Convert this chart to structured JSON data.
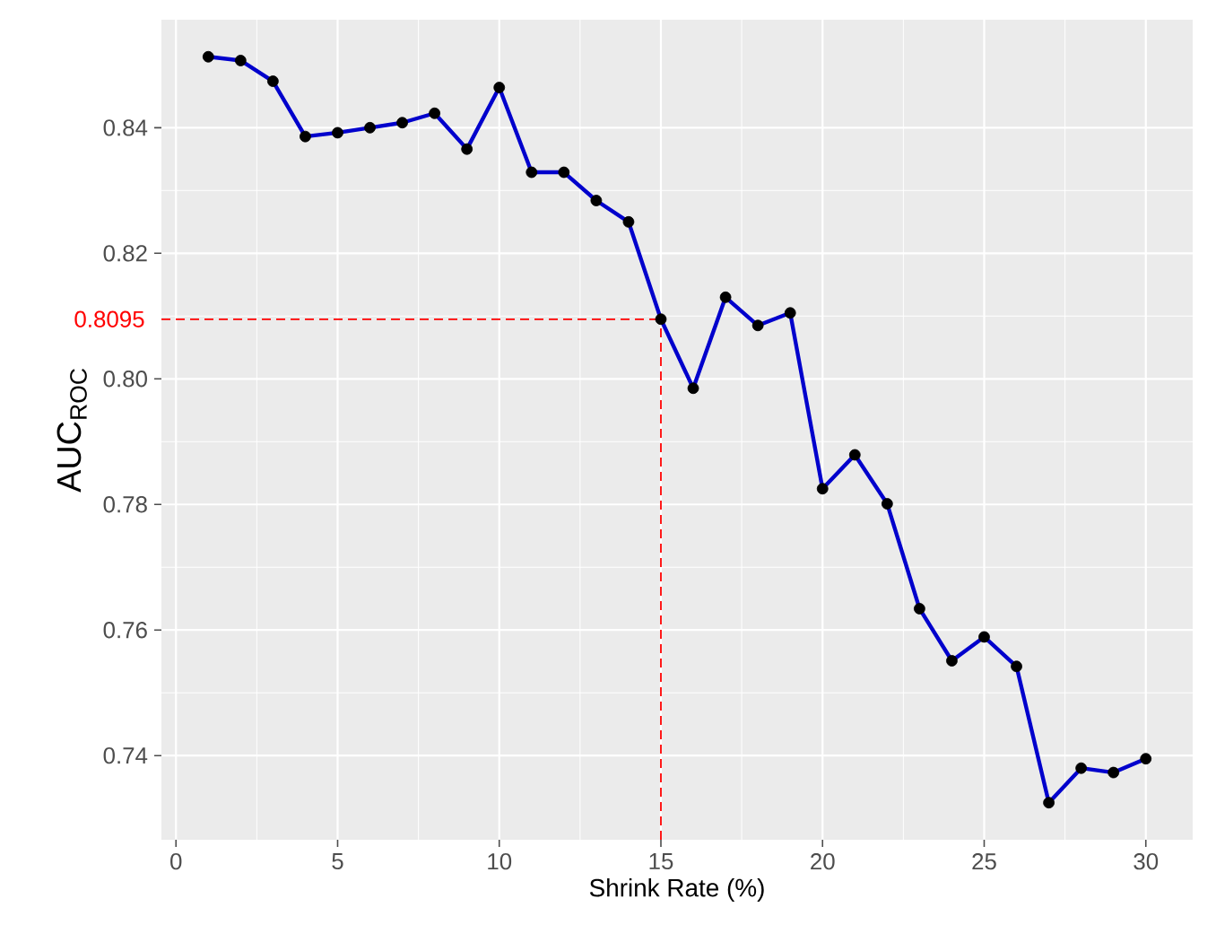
{
  "chart_data": {
    "type": "line",
    "xlabel": "Shrink Rate (%)",
    "ylabel": "AUC$_{ROC}$",
    "x": [
      1,
      2,
      3,
      4,
      5,
      6,
      7,
      8,
      9,
      10,
      11,
      12,
      13,
      14,
      15,
      16,
      17,
      18,
      19,
      20,
      21,
      22,
      23,
      24,
      25,
      26,
      27,
      28,
      29,
      30
    ],
    "series": [
      {
        "color": "#0000cc",
        "values": [
          0.8513,
          0.8507,
          0.8474,
          0.8386,
          0.8392,
          0.84,
          0.8408,
          0.8423,
          0.8366,
          0.8464,
          0.8329,
          0.8329,
          0.8284,
          0.825,
          0.8095,
          0.7985,
          0.813,
          0.8085,
          0.8105,
          0.7825,
          0.7879,
          0.7801,
          0.7634,
          0.7551,
          0.7589,
          0.7542,
          0.7325,
          0.738,
          0.7373,
          0.7395
        ]
      }
    ],
    "xlim": [
      -0.45,
      31.45
    ],
    "ylim": [
      0.7266,
      0.8572
    ],
    "xticks": [
      0,
      5,
      10,
      15,
      20,
      25,
      30
    ],
    "yticks": [
      0.74,
      0.76,
      0.78,
      {
        "value": 0.8,
        "label": "0.80"
      },
      0.82,
      0.84
    ],
    "ref_lines": [
      {
        "axis": "y",
        "value": 0.8095,
        "label": "0.8095",
        "color": "#ff0000",
        "line_style": "dashed"
      },
      {
        "axis": "x",
        "value": 15,
        "color": "#ff0000",
        "line_style": "dashed"
      }
    ],
    "grid": true,
    "marker": "circle",
    "line_style": "solid"
  }
}
